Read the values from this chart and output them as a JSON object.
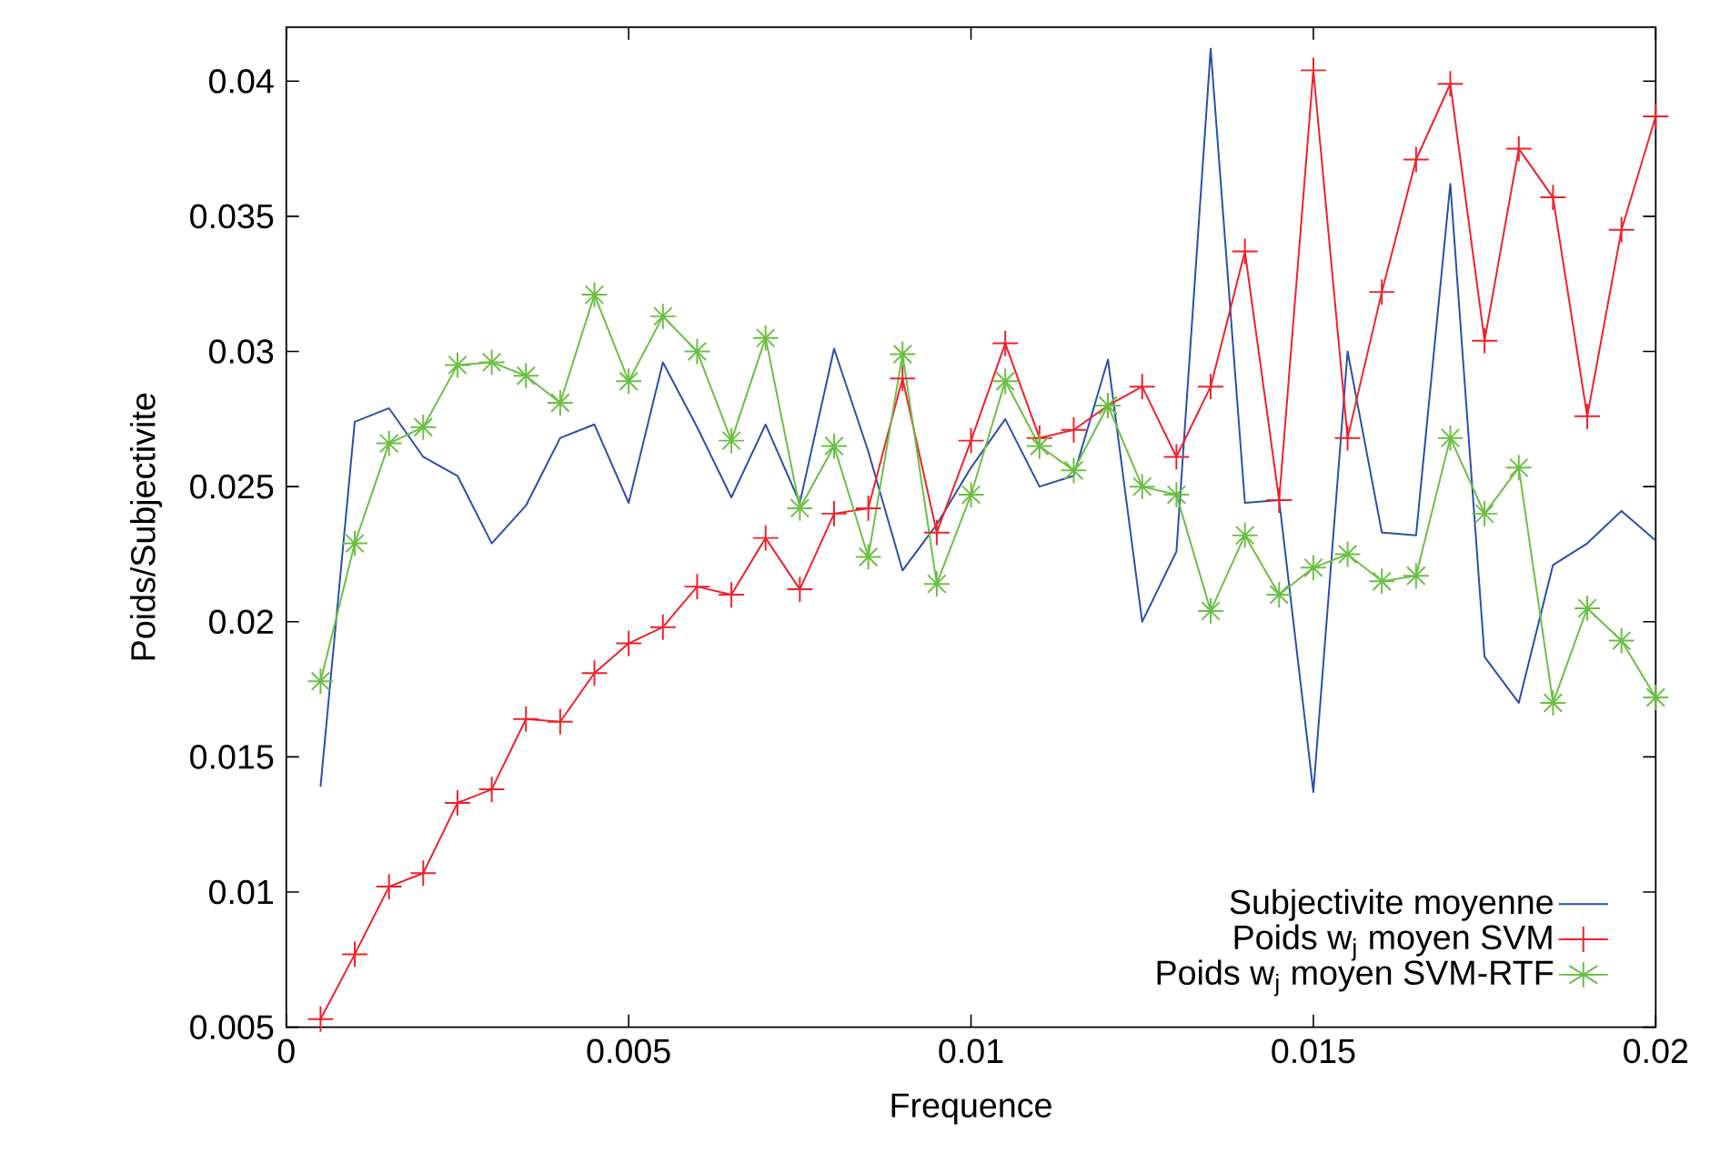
{
  "chart_data": {
    "type": "line",
    "xlabel": "Frequence",
    "ylabel": "Poids/Subjectivite",
    "x": [
      0.0005,
      0.001,
      0.0015,
      0.002,
      0.0025,
      0.003,
      0.0035,
      0.004,
      0.0045,
      0.005,
      0.0055,
      0.006,
      0.0065,
      0.007,
      0.0075,
      0.008,
      0.0085,
      0.009,
      0.0095,
      0.01,
      0.0105,
      0.011,
      0.0115,
      0.012,
      0.0125,
      0.013,
      0.0135,
      0.014,
      0.0145,
      0.015,
      0.0155,
      0.016,
      0.0165,
      0.017,
      0.0175,
      0.018,
      0.0185,
      0.019,
      0.0195,
      0.02
    ],
    "series": [
      {
        "name": "Subjectivite moyenne",
        "color": "#2a4fa8",
        "marker": "none",
        "values": [
          0.0139,
          0.0274,
          0.0279,
          0.0261,
          0.0254,
          0.0229,
          0.0243,
          0.0268,
          0.0273,
          0.0244,
          0.0296,
          0.0272,
          0.0246,
          0.0273,
          0.0244,
          0.0301,
          0.0263,
          0.0219,
          0.0236,
          0.0257,
          0.0275,
          0.025,
          0.0254,
          0.0297,
          0.02,
          0.0226,
          0.0412,
          0.0244,
          0.0245,
          0.0137,
          0.03,
          0.0233,
          0.0232,
          0.0362,
          0.0187,
          0.017,
          0.0221,
          0.0229,
          0.0241,
          0.023
        ]
      },
      {
        "name": "Poids w$_{j}$ moyen SVM",
        "color": "#f0202a",
        "marker": "cross",
        "values": [
          0.0053,
          0.0077,
          0.0102,
          0.0107,
          0.0133,
          0.0138,
          0.0164,
          0.0163,
          0.0181,
          0.0192,
          0.0198,
          0.0213,
          0.021,
          0.0231,
          0.0212,
          0.024,
          0.0242,
          0.029,
          0.0233,
          0.0267,
          0.0303,
          0.0268,
          0.0271,
          0.028,
          0.0287,
          0.0261,
          0.0287,
          0.0337,
          0.0245,
          0.0404,
          0.0268,
          0.0322,
          0.0371,
          0.0399,
          0.0304,
          0.0375,
          0.0357,
          0.0276,
          0.0345,
          0.0387
        ]
      },
      {
        "name": "Poids w$_{j}$ moyen SVM-RTF",
        "color": "#6bbf44",
        "marker": "cross",
        "values": [
          0.0178,
          0.0229,
          0.0266,
          0.0272,
          0.0295,
          0.0296,
          0.0291,
          0.0281,
          0.0321,
          0.0289,
          0.0313,
          0.03,
          0.0267,
          0.0305,
          0.0242,
          0.0265,
          0.0224,
          0.0299,
          0.0214,
          0.0247,
          0.0289,
          0.0265,
          0.0256,
          0.028,
          0.025,
          0.0247,
          0.0204,
          0.0232,
          0.021,
          0.022,
          0.0225,
          0.0215,
          0.0217,
          0.0268,
          0.024,
          0.0257,
          0.017,
          0.0205,
          0.0193,
          0.0172
        ]
      }
    ],
    "xlim": [
      0,
      0.02
    ],
    "ylim": [
      0.005,
      0.042
    ],
    "xticks": [
      0,
      0.005,
      0.01,
      0.015,
      0.02
    ],
    "yticks": [
      0.005,
      0.01,
      0.015,
      0.02,
      0.025,
      0.03,
      0.035,
      0.04
    ],
    "grid": false,
    "legend": "bottom right",
    "line_style": "solid"
  }
}
